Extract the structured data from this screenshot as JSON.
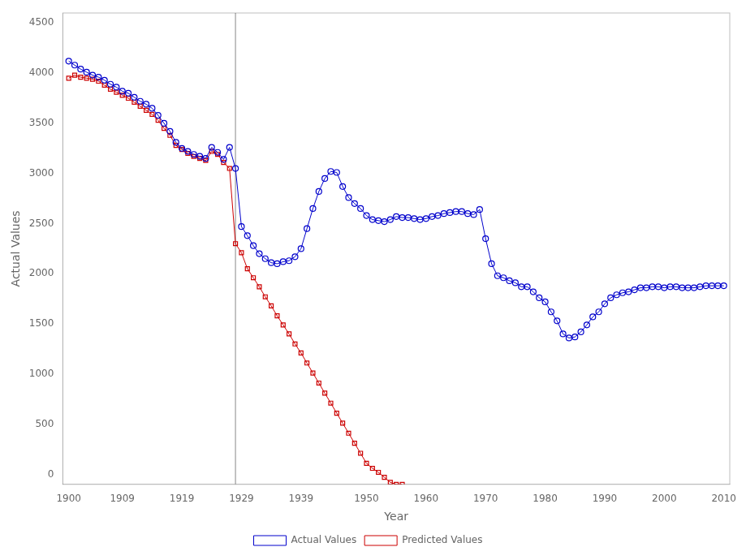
{
  "chart_data": {
    "type": "line",
    "xlabel": "Year",
    "ylabel": "Actual Values",
    "series": [
      {
        "name": "Actual Values",
        "color": "#0000CC",
        "marker": "circle",
        "x": [
          1900,
          1901,
          1902,
          1903,
          1904,
          1905,
          1906,
          1907,
          1908,
          1909,
          1910,
          1911,
          1912,
          1913,
          1914,
          1915,
          1916,
          1917,
          1918,
          1919,
          1920,
          1921,
          1922,
          1923,
          1924,
          1925,
          1926,
          1927,
          1928,
          1929,
          1930,
          1931,
          1932,
          1933,
          1934,
          1935,
          1936,
          1937,
          1938,
          1939,
          1940,
          1941,
          1942,
          1943,
          1944,
          1945,
          1946,
          1947,
          1948,
          1949,
          1950,
          1951,
          1952,
          1953,
          1954,
          1955,
          1956,
          1957,
          1958,
          1959,
          1960,
          1961,
          1962,
          1963,
          1964,
          1965,
          1966,
          1967,
          1968,
          1969,
          1970,
          1971,
          1972,
          1973,
          1974,
          1975,
          1976,
          1977,
          1978,
          1979,
          1980,
          1981,
          1982,
          1983,
          1984,
          1985,
          1986,
          1987,
          1988,
          1989,
          1990,
          1991,
          1992,
          1993,
          1994,
          1995,
          1996,
          1997,
          1998,
          1999,
          2000,
          2001,
          2002,
          2003,
          2004,
          2005,
          2006,
          2007,
          2008,
          2009,
          2010
        ],
        "values": [
          4120,
          4080,
          4040,
          4010,
          3980,
          3960,
          3930,
          3890,
          3860,
          3820,
          3800,
          3760,
          3720,
          3690,
          3650,
          3580,
          3500,
          3420,
          3310,
          3250,
          3220,
          3190,
          3170,
          3150,
          3260,
          3210,
          3140,
          3260,
          3050,
          2470,
          2380,
          2280,
          2200,
          2150,
          2110,
          2100,
          2120,
          2130,
          2170,
          2250,
          2450,
          2650,
          2820,
          2950,
          3020,
          3010,
          2870,
          2760,
          2700,
          2650,
          2580,
          2540,
          2530,
          2520,
          2540,
          2570,
          2560,
          2560,
          2550,
          2540,
          2550,
          2570,
          2580,
          2600,
          2610,
          2620,
          2620,
          2600,
          2590,
          2640,
          2350,
          2100,
          1980,
          1960,
          1930,
          1910,
          1870,
          1870,
          1820,
          1760,
          1720,
          1620,
          1530,
          1400,
          1360,
          1370,
          1420,
          1490,
          1570,
          1620,
          1700,
          1760,
          1790,
          1810,
          1820,
          1840,
          1860,
          1860,
          1870,
          1870,
          1860,
          1870,
          1870,
          1860,
          1860,
          1860,
          1870,
          1880,
          1880,
          1880,
          1880
        ]
      },
      {
        "name": "Predicted Values",
        "color": "#CC0000",
        "marker": "square",
        "x": [
          1900,
          1901,
          1902,
          1903,
          1904,
          1905,
          1906,
          1907,
          1908,
          1909,
          1910,
          1911,
          1912,
          1913,
          1914,
          1915,
          1916,
          1917,
          1918,
          1919,
          1920,
          1921,
          1922,
          1923,
          1924,
          1925,
          1926,
          1927,
          1928,
          1929,
          1930,
          1931,
          1932,
          1933,
          1934,
          1935,
          1936,
          1937,
          1938,
          1939,
          1940,
          1941,
          1942,
          1943,
          1944,
          1945,
          1946,
          1947,
          1948,
          1949,
          1950,
          1951,
          1952,
          1953,
          1954,
          1955,
          1956
        ],
        "values": [
          3950,
          3980,
          3960,
          3950,
          3940,
          3920,
          3880,
          3840,
          3810,
          3780,
          3750,
          3710,
          3670,
          3630,
          3590,
          3530,
          3450,
          3380,
          3280,
          3240,
          3200,
          3170,
          3150,
          3130,
          3220,
          3190,
          3110,
          3050,
          2300,
          2210,
          2050,
          1960,
          1870,
          1770,
          1680,
          1580,
          1490,
          1400,
          1300,
          1210,
          1110,
          1010,
          910,
          810,
          710,
          610,
          510,
          410,
          310,
          210,
          110,
          60,
          20,
          -30,
          -80,
          -100,
          -100
        ]
      }
    ],
    "vlines": [
      {
        "x": 1928,
        "color": "#888888"
      }
    ],
    "xlim": [
      1899,
      2011
    ],
    "xticks": [
      1900,
      1909,
      1919,
      1929,
      1939,
      1950,
      1960,
      1970,
      1980,
      1990,
      2000,
      2010
    ],
    "ylim": [
      -100,
      4600
    ],
    "yticks": [
      0,
      500,
      1000,
      1500,
      2000,
      2500,
      3000,
      3500,
      4000,
      4500
    ],
    "grid": false,
    "legend": "bottom"
  }
}
